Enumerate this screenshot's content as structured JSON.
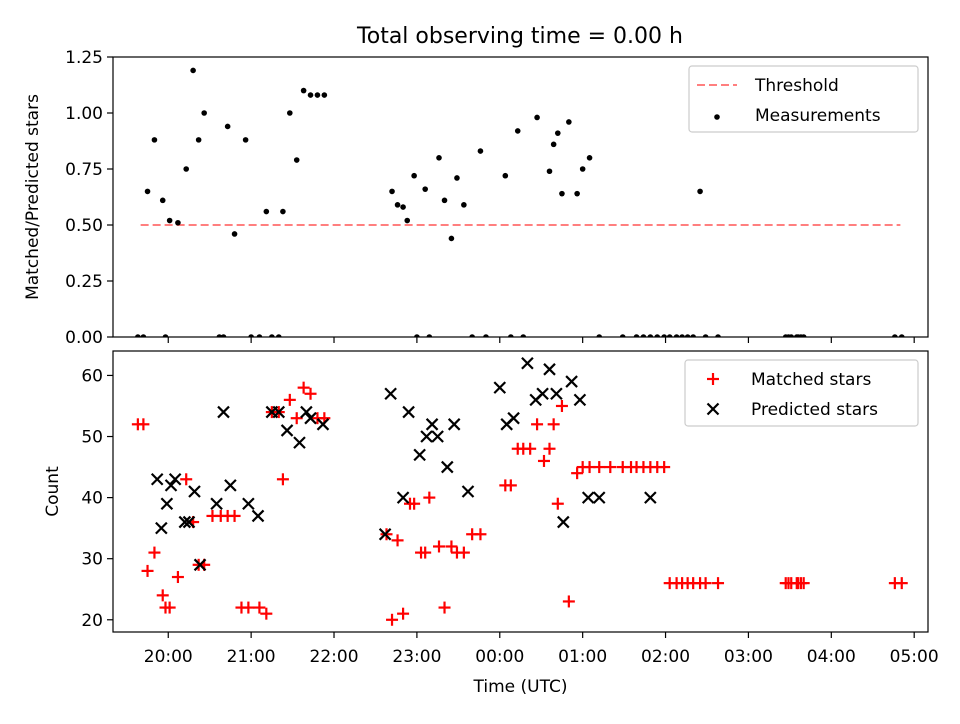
{
  "figure": {
    "title": "Total observing time = 0.00 h"
  },
  "chart_data": [
    {
      "type": "scatter",
      "title": "Total observing time = 0.00 h",
      "xlabel": "",
      "ylabel": "Matched/Predicted stars",
      "xlim": [
        "19:20",
        "05:10"
      ],
      "ylim": [
        0,
        1.25
      ],
      "yticks": [
        "0.00",
        "0.25",
        "0.50",
        "0.75",
        "1.00",
        "1.25"
      ],
      "threshold": {
        "name": "Threshold",
        "value": 0.5,
        "x_range": [
          "19:40",
          "04:50"
        ],
        "color": "#ff7f7f"
      },
      "legend": {
        "placement": "top-right",
        "entries": [
          "Threshold",
          "Measurements"
        ]
      },
      "series": [
        {
          "name": "Measurements",
          "color": "#000000",
          "marker": "dot",
          "x": [
            "19:38",
            "19:42",
            "19:45",
            "19:50",
            "19:56",
            "19:58",
            "20:01",
            "20:07",
            "20:13",
            "20:18",
            "20:22",
            "20:26",
            "20:37",
            "20:40",
            "20:43",
            "20:48",
            "20:56",
            "21:00",
            "21:06",
            "21:11",
            "21:15",
            "21:20",
            "21:23",
            "21:28",
            "21:33",
            "21:38",
            "21:43",
            "21:48",
            "21:53",
            "22:42",
            "22:46",
            "22:50",
            "22:53",
            "22:58",
            "23:00",
            "23:06",
            "23:09",
            "23:16",
            "23:20",
            "23:25",
            "23:29",
            "23:34",
            "23:40",
            "23:46",
            "23:50",
            "24:04",
            "24:08",
            "24:13",
            "24:17",
            "24:27",
            "24:36",
            "24:39",
            "24:42",
            "24:45",
            "24:50",
            "24:56",
            "25:00",
            "25:05",
            "25:12",
            "25:29",
            "25:39",
            "25:44",
            "25:49",
            "25:54",
            "25:59",
            "26:03",
            "26:08",
            "26:12",
            "26:16",
            "26:20",
            "26:25",
            "26:29",
            "26:38",
            "27:27",
            "27:29",
            "27:31",
            "27:35",
            "27:36",
            "27:38",
            "27:40",
            "28:46",
            "28:51"
          ],
          "y": [
            0,
            0,
            0.65,
            0.88,
            0.61,
            0,
            0.52,
            0.51,
            0.75,
            1.19,
            0.88,
            1.0,
            0,
            0,
            0.94,
            0.46,
            0.88,
            0,
            0,
            0.56,
            0,
            0,
            0.56,
            1.0,
            0.79,
            1.1,
            1.08,
            1.08,
            1.08,
            0.65,
            0.59,
            0.58,
            0.52,
            0.72,
            0,
            0.66,
            0,
            0.8,
            0.61,
            0.44,
            0.71,
            0.59,
            0,
            0.83,
            0,
            0.72,
            0,
            0.92,
            0,
            0.98,
            0.74,
            0.86,
            0.91,
            0.64,
            0.96,
            0.64,
            0.75,
            0.8,
            0,
            0,
            0,
            0,
            0,
            0,
            0,
            0,
            0,
            0,
            0,
            0,
            0.65,
            0,
            0,
            0,
            0,
            0,
            0,
            0,
            0,
            0,
            0,
            0
          ]
        }
      ]
    },
    {
      "type": "scatter",
      "title": "",
      "xlabel": "Time (UTC)",
      "ylabel": "Count",
      "xlim": [
        "19:20",
        "05:10"
      ],
      "ylim": [
        18,
        64
      ],
      "yticks": [
        "20",
        "30",
        "40",
        "50",
        "60"
      ],
      "xticks": [
        "20:00",
        "21:00",
        "22:00",
        "23:00",
        "00:00",
        "01:00",
        "02:00",
        "03:00",
        "04:00",
        "05:00"
      ],
      "legend": {
        "placement": "top-right",
        "entries": [
          "Matched stars",
          "Predicted stars"
        ]
      },
      "series": [
        {
          "name": "Matched stars",
          "color": "#ff0000",
          "marker": "plus",
          "x": [
            "19:38",
            "19:42",
            "19:45",
            "19:50",
            "19:56",
            "19:58",
            "20:01",
            "20:07",
            "20:13",
            "20:18",
            "20:22",
            "20:26",
            "20:32",
            "20:38",
            "20:43",
            "20:48",
            "20:53",
            "20:58",
            "21:06",
            "21:11",
            "21:15",
            "21:20",
            "21:23",
            "21:28",
            "21:33",
            "21:38",
            "21:43",
            "21:48",
            "21:53",
            "22:38",
            "22:42",
            "22:46",
            "22:50",
            "22:55",
            "22:58",
            "23:03",
            "23:06",
            "23:09",
            "23:16",
            "23:20",
            "23:25",
            "23:29",
            "23:34",
            "23:40",
            "23:46",
            "24:04",
            "24:08",
            "24:13",
            "24:17",
            "24:22",
            "24:27",
            "24:32",
            "24:36",
            "24:39",
            "24:42",
            "24:45",
            "24:50",
            "24:56",
            "25:00",
            "25:05",
            "25:12",
            "25:20",
            "25:29",
            "25:35",
            "25:39",
            "25:44",
            "25:49",
            "25:54",
            "25:59",
            "26:03",
            "26:08",
            "26:12",
            "26:16",
            "26:20",
            "26:25",
            "26:29",
            "26:38",
            "27:27",
            "27:29",
            "27:31",
            "27:35",
            "27:36",
            "27:38",
            "27:40",
            "28:46",
            "28:51"
          ],
          "y": [
            52,
            52,
            28,
            31,
            24,
            22,
            22,
            27,
            43,
            36,
            29,
            29,
            37,
            37,
            37,
            37,
            22,
            22,
            22,
            21,
            54,
            54,
            43,
            56,
            53,
            58,
            57,
            53,
            53,
            34,
            20,
            33,
            21,
            39,
            39,
            31,
            31,
            40,
            32,
            22,
            32,
            31,
            31,
            34,
            34,
            42,
            42,
            48,
            48,
            48,
            52,
            46,
            48,
            52,
            39,
            55,
            23,
            44,
            45,
            45,
            45,
            45,
            45,
            45,
            45,
            45,
            45,
            45,
            45,
            26,
            26,
            26,
            26,
            26,
            26,
            26,
            26,
            26,
            26,
            26,
            26,
            26,
            26,
            26,
            26,
            26
          ]
        },
        {
          "name": "Predicted stars",
          "color": "#000000",
          "marker": "x",
          "x": [
            "19:52",
            "19:55",
            "19:59",
            "20:02",
            "20:05",
            "20:12",
            "20:15",
            "20:19",
            "20:23",
            "20:35",
            "20:40",
            "20:45",
            "20:58",
            "21:05",
            "21:15",
            "21:20",
            "21:26",
            "21:35",
            "21:40",
            "21:43",
            "21:52",
            "22:37",
            "22:41",
            "22:50",
            "22:54",
            "23:02",
            "23:07",
            "23:11",
            "23:15",
            "23:22",
            "23:27",
            "23:37",
            "24:00",
            "24:05",
            "24:10",
            "24:20",
            "24:26",
            "24:31",
            "24:36",
            "24:41",
            "24:46",
            "24:52",
            "24:58",
            "25:04",
            "25:12",
            "25:49"
          ],
          "y": [
            43,
            35,
            39,
            42,
            43,
            36,
            36,
            41,
            29,
            39,
            54,
            42,
            39,
            37,
            54,
            54,
            51,
            49,
            54,
            53,
            52,
            34,
            57,
            40,
            54,
            47,
            50,
            52,
            50,
            45,
            52,
            41,
            58,
            52,
            53,
            62,
            56,
            57,
            61,
            57,
            36,
            59,
            56,
            40,
            40,
            40
          ]
        }
      ]
    }
  ]
}
